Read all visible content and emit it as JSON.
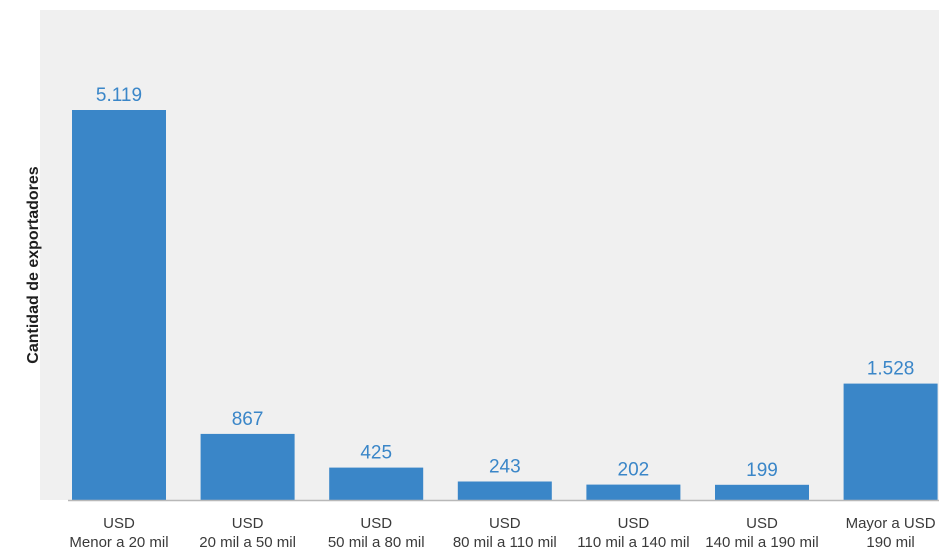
{
  "chart_data": {
    "type": "bar",
    "title": "",
    "xlabel": "",
    "ylabel": "Cantidad de exportadores",
    "categories": [
      [
        "USD",
        "Menor a 20 mil"
      ],
      [
        "USD",
        "20 mil a 50 mil"
      ],
      [
        "USD",
        "50 mil a 80 mil"
      ],
      [
        "USD",
        "80 mil a 110 mil"
      ],
      [
        "USD",
        "110 mil a 140 mil"
      ],
      [
        "USD",
        "140 mil a 190 mil"
      ],
      [
        "Mayor a USD",
        "190 mil"
      ]
    ],
    "values": [
      5119,
      867,
      425,
      243,
      202,
      199,
      1528
    ],
    "value_labels": [
      "5.119",
      "867",
      "425",
      "243",
      "202",
      "199",
      "1.528"
    ],
    "ylim": [
      0,
      5500
    ],
    "grid": false,
    "legend": "none",
    "bar_color": "#3a86c8",
    "label_color": "#3a86c8",
    "background_color": "#f0f0f0"
  }
}
